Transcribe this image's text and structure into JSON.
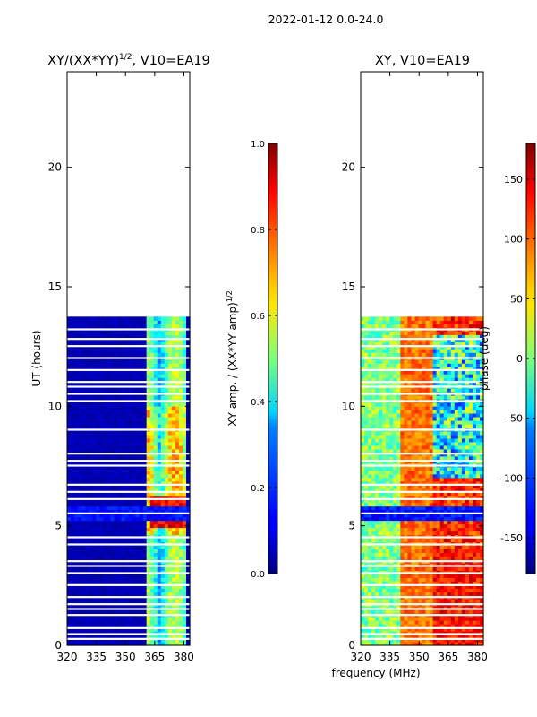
{
  "suptitle": "2022-01-12 0.0-24.0",
  "chart_data": [
    {
      "type": "heatmap",
      "title_main": "XY/(XX*YY)",
      "title_sup": "1/2",
      "title_tail": ", V10=EA19",
      "xlabel": "",
      "ylabel": "UT (hours)",
      "xlim": [
        320,
        383
      ],
      "ylim": [
        0,
        24
      ],
      "xticks": [
        320,
        335,
        350,
        365,
        380
      ],
      "yticks": [
        0,
        5,
        10,
        15,
        20
      ],
      "data_extent_hours": [
        0,
        13.75
      ],
      "hot_band_hours": [
        [
          4.8,
          5.2
        ],
        [
          5.8,
          6.2
        ]
      ],
      "colorbar": {
        "label_main": "XY amp. / (XX*YY amp)",
        "label_sup": "1/2",
        "range": [
          0.0,
          1.0
        ],
        "ticks": [
          "0.0",
          "0.2",
          "0.4",
          "0.6",
          "0.8",
          "1.0"
        ]
      }
    },
    {
      "type": "heatmap",
      "title_main": "XY, V10=EA19",
      "xlabel": "frequency (MHz)",
      "ylabel": "",
      "xlim": [
        320,
        383
      ],
      "ylim": [
        0,
        24
      ],
      "xticks": [
        320,
        335,
        350,
        365,
        380
      ],
      "yticks": [
        0,
        5,
        10,
        15,
        20
      ],
      "data_extent_hours": [
        0,
        13.75
      ],
      "colorbar": {
        "label_main": "phase (deg)",
        "range": [
          -180,
          180
        ],
        "ticks": [
          "-150",
          "-100",
          "-50",
          "0",
          "50",
          "100",
          "150"
        ]
      }
    }
  ]
}
